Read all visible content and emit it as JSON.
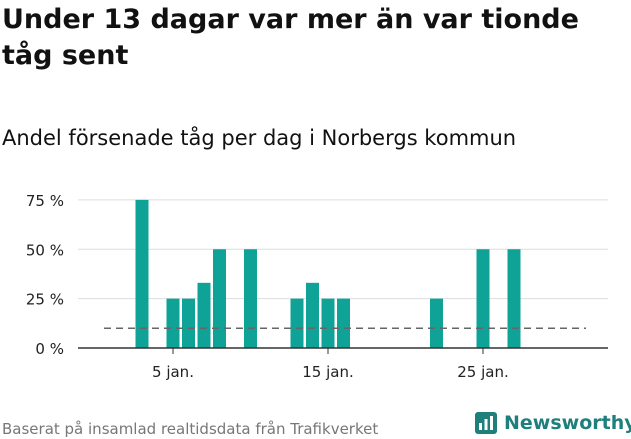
{
  "title": "Under 13 dagar var mer än var tionde tåg sent",
  "subtitle": "Andel försenade tåg per dag i Norbergs kommun",
  "footer": {
    "source": "Baserat på insamlad realtidsdata från Trafikverket",
    "brand": "Newsworthy"
  },
  "colors": {
    "bar": "#0fa398",
    "reference_line": "#666666",
    "grid": "#dddddd",
    "brand": "#1f7f7c"
  },
  "chart_data": {
    "type": "bar",
    "title": "Andel försenade tåg per dag i Norbergs kommun",
    "xlabel": "",
    "ylabel": "",
    "x_range_days": [
      1,
      30
    ],
    "ylim": [
      0,
      80
    ],
    "y_ticks": [
      {
        "value": 0,
        "label": "0 %"
      },
      {
        "value": 25,
        "label": "25 %"
      },
      {
        "value": 50,
        "label": "50 %"
      },
      {
        "value": 75,
        "label": "75 %"
      }
    ],
    "x_ticks": [
      {
        "day": 5,
        "label": "5 jan."
      },
      {
        "day": 15,
        "label": "15 jan."
      },
      {
        "day": 25,
        "label": "25 jan."
      }
    ],
    "reference_line": {
      "value": 10,
      "style": "dashed"
    },
    "grid": true,
    "bars": [
      {
        "day": 3,
        "value": 75
      },
      {
        "day": 5,
        "value": 25
      },
      {
        "day": 6,
        "value": 25
      },
      {
        "day": 7,
        "value": 33
      },
      {
        "day": 8,
        "value": 50
      },
      {
        "day": 10,
        "value": 50
      },
      {
        "day": 13,
        "value": 25
      },
      {
        "day": 14,
        "value": 33
      },
      {
        "day": 15,
        "value": 25
      },
      {
        "day": 16,
        "value": 25
      },
      {
        "day": 22,
        "value": 25
      },
      {
        "day": 25,
        "value": 50
      },
      {
        "day": 27,
        "value": 50
      }
    ]
  }
}
